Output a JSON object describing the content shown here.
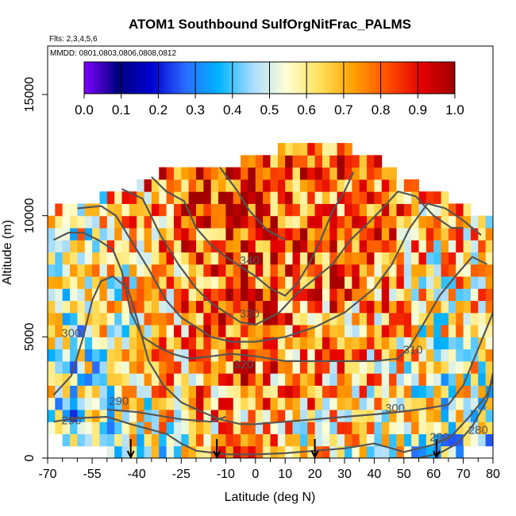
{
  "chart_data": {
    "type": "heatmap",
    "title": "ATOM1 Southbound SulfOrgNitFrac_PALMS",
    "subtitle_flights": "Flts: 2,3,4,5,6",
    "subtitle_dates": "MMDD: 0801,0803,0806,0808,0812",
    "xlabel": "Latitude (deg N)",
    "ylabel": "Altitude (m)",
    "xlim": [
      -70,
      80
    ],
    "ylim": [
      0,
      17000
    ],
    "x_ticks": [
      -70,
      -55,
      -40,
      -25,
      -10,
      0,
      10,
      20,
      30,
      40,
      50,
      60,
      70,
      80
    ],
    "x_minor_ticks": [
      -65,
      -60,
      -50,
      -45,
      -35,
      -30,
      -20,
      -15,
      -5,
      5,
      15,
      25,
      35,
      45,
      55,
      65,
      75
    ],
    "y_ticks": [
      0,
      5000,
      10000,
      15000
    ],
    "colorbar": {
      "min": 0.0,
      "max": 1.0,
      "ticks": [
        "0.0",
        "0.1",
        "0.2",
        "0.3",
        "0.4",
        "0.5",
        "0.6",
        "0.7",
        "0.8",
        "0.9",
        "1.0"
      ],
      "stops": [
        "#7f00ff",
        "#00007f",
        "#0000d0",
        "#2a6cff",
        "#00b4ff",
        "#a8dcff",
        "#ffffd6",
        "#ffe05a",
        "#ffa000",
        "#ff5000",
        "#e60000",
        "#a00000"
      ]
    },
    "value_grid": {
      "x_start": -70,
      "x_step": 2.5,
      "y_start": 0,
      "y_step": 500,
      "lat_profile": [
        [
          -70,
          0.38
        ],
        [
          -60,
          0.34
        ],
        [
          -50,
          0.44
        ],
        [
          -40,
          0.55
        ],
        [
          -30,
          0.65
        ],
        [
          -20,
          0.78
        ],
        [
          -10,
          0.85
        ],
        [
          0,
          0.82
        ],
        [
          10,
          0.78
        ],
        [
          20,
          0.74
        ],
        [
          30,
          0.7
        ],
        [
          40,
          0.68
        ],
        [
          50,
          0.58
        ],
        [
          60,
          0.48
        ],
        [
          70,
          0.48
        ],
        [
          80,
          0.5
        ]
      ],
      "alt_profile": [
        [
          0,
          0.48
        ],
        [
          1000,
          0.55
        ],
        [
          2000,
          0.62
        ],
        [
          3500,
          0.68
        ],
        [
          5000,
          0.72
        ],
        [
          7000,
          0.8
        ],
        [
          9000,
          0.86
        ],
        [
          11000,
          0.9
        ],
        [
          13500,
          0.88
        ]
      ],
      "data_coverage": [
        [
          -69.5,
          800,
          10200
        ],
        [
          -60,
          300,
          10500
        ],
        [
          -50,
          0,
          10800
        ],
        [
          -40,
          0,
          11200
        ],
        [
          -30,
          0,
          12000
        ],
        [
          -20,
          0,
          12000
        ],
        [
          -10,
          0,
          12000
        ],
        [
          0,
          0,
          12400
        ],
        [
          10,
          0,
          12800
        ],
        [
          20,
          0,
          13300
        ],
        [
          30,
          0,
          12800
        ],
        [
          40,
          0,
          12400
        ],
        [
          50,
          0,
          11600
        ],
        [
          60,
          0,
          11000
        ],
        [
          70,
          0,
          10400
        ],
        [
          78,
          500,
          10000
        ]
      ]
    },
    "potential_temperature_contours": [
      {
        "label": "280",
        "points": [
          [
            45,
            0
          ],
          [
            55,
            0
          ],
          [
            62,
            200
          ],
          [
            68,
            600
          ],
          [
            73,
            1300
          ],
          [
            78,
            2400
          ],
          [
            80,
            3500
          ]
        ]
      },
      {
        "label": "290",
        "points": [
          [
            -68,
            1500
          ],
          [
            -60,
            1650
          ],
          [
            -50,
            1700
          ],
          [
            -42,
            1400
          ],
          [
            -36,
            1200
          ],
          [
            -30,
            1000
          ],
          [
            -25,
            600
          ],
          [
            -20,
            300
          ],
          [
            -10,
            150
          ],
          [
            0,
            150
          ],
          [
            10,
            200
          ],
          [
            20,
            300
          ],
          [
            30,
            400
          ],
          [
            40,
            600
          ],
          [
            46,
            400
          ],
          [
            50,
            250
          ],
          [
            55,
            400
          ],
          [
            60,
            550
          ],
          [
            66,
            900
          ],
          [
            72,
            1700
          ],
          [
            78,
            2600
          ],
          [
            80,
            3200
          ]
        ]
      },
      {
        "label": "290",
        "points": [
          [
            -50,
            2000
          ],
          [
            -40,
            1900
          ],
          [
            -25,
            1600
          ],
          [
            -15,
            1500
          ],
          [
            -10,
            1700
          ]
        ]
      },
      {
        "label": "300",
        "points": [
          [
            -68,
            2600
          ],
          [
            -62,
            3400
          ],
          [
            -58,
            5000
          ],
          [
            -55,
            6500
          ],
          [
            -52,
            7300
          ],
          [
            -48,
            7500
          ],
          [
            -43,
            7000
          ],
          [
            -40,
            5800
          ],
          [
            -36,
            4000
          ],
          [
            -31,
            3000
          ],
          [
            -25,
            2300
          ],
          [
            -18,
            1900
          ],
          [
            -12,
            1600
          ],
          [
            -5,
            1400
          ],
          [
            0,
            1400
          ],
          [
            10,
            1500
          ],
          [
            20,
            1600
          ],
          [
            30,
            1700
          ],
          [
            40,
            1800
          ],
          [
            48,
            1900
          ],
          [
            55,
            2000
          ],
          [
            60,
            2100
          ],
          [
            65,
            2200
          ],
          [
            70,
            3000
          ],
          [
            75,
            4500
          ],
          [
            80,
            6000
          ]
        ]
      },
      {
        "label": "310",
        "points": [
          [
            -68,
            9000
          ],
          [
            -63,
            9300
          ],
          [
            -58,
            9300
          ],
          [
            -53,
            9000
          ],
          [
            -48,
            8600
          ],
          [
            -45,
            7700
          ],
          [
            -42,
            6000
          ],
          [
            -38,
            5000
          ],
          [
            -33,
            4600
          ],
          [
            -28,
            4300
          ],
          [
            -22,
            4100
          ],
          [
            -15,
            4200
          ],
          [
            -8,
            4300
          ],
          [
            0,
            4200
          ],
          [
            10,
            4000
          ],
          [
            20,
            4000
          ],
          [
            30,
            4000
          ],
          [
            40,
            4000
          ],
          [
            48,
            4100
          ],
          [
            52,
            4600
          ],
          [
            56,
            5400
          ],
          [
            62,
            6700
          ],
          [
            68,
            7600
          ],
          [
            73,
            8300
          ],
          [
            78,
            8000
          ]
        ]
      },
      {
        "label": "320",
        "points": [
          [
            -60,
            10300
          ],
          [
            -52,
            10400
          ],
          [
            -47,
            10000
          ],
          [
            -42,
            9000
          ],
          [
            -36,
            7800
          ],
          [
            -30,
            6500
          ],
          [
            -25,
            5800
          ],
          [
            -20,
            5400
          ],
          [
            -15,
            5000
          ],
          [
            -8,
            4800
          ],
          [
            0,
            4800
          ],
          [
            10,
            5000
          ],
          [
            20,
            5400
          ],
          [
            30,
            6000
          ],
          [
            40,
            7000
          ],
          [
            46,
            8000
          ],
          [
            52,
            9500
          ],
          [
            58,
            10500
          ],
          [
            64,
            10300
          ],
          [
            70,
            9800
          ],
          [
            76,
            9200
          ]
        ]
      },
      {
        "label": "330",
        "points": [
          [
            -45,
            11100
          ],
          [
            -38,
            10700
          ],
          [
            -32,
            9200
          ],
          [
            -26,
            8000
          ],
          [
            -20,
            7000
          ],
          [
            -15,
            6400
          ],
          [
            -10,
            6000
          ],
          [
            -5,
            5600
          ],
          [
            0,
            5500
          ],
          [
            8,
            6000
          ],
          [
            14,
            6800
          ],
          [
            20,
            7400
          ],
          [
            26,
            8000
          ],
          [
            32,
            9000
          ],
          [
            38,
            9700
          ],
          [
            42,
            10200
          ],
          [
            48,
            11000
          ],
          [
            54,
            10800
          ],
          [
            60,
            10000
          ],
          [
            66,
            9500
          ],
          [
            70,
            9500
          ]
        ]
      },
      {
        "label": "340",
        "points": [
          [
            -35,
            11600
          ],
          [
            -30,
            11000
          ],
          [
            -24,
            10600
          ],
          [
            -20,
            9500
          ],
          [
            -15,
            8800
          ],
          [
            -10,
            8300
          ],
          [
            -5,
            7900
          ],
          [
            0,
            7500
          ],
          [
            5,
            7000
          ],
          [
            10,
            6700
          ],
          [
            14,
            7200
          ],
          [
            18,
            8000
          ],
          [
            22,
            9000
          ],
          [
            26,
            10200
          ],
          [
            30,
            11000
          ],
          [
            33,
            11800
          ]
        ]
      },
      {
        "label": "",
        "points": [
          [
            -12,
            12000
          ],
          [
            -6,
            11000
          ],
          [
            -2,
            10200
          ],
          [
            4,
            9400
          ],
          [
            10,
            9000
          ]
        ]
      }
    ],
    "contour_labels": [
      {
        "text": "340",
        "x": -2,
        "y": 8000
      },
      {
        "text": "330",
        "x": -2,
        "y": 5800
      },
      {
        "text": "320",
        "x": -4,
        "y": 3700
      },
      {
        "text": "310",
        "x": 53,
        "y": 4300
      },
      {
        "text": "300",
        "x": 47,
        "y": 1900
      },
      {
        "text": "300",
        "x": -62,
        "y": 5000
      },
      {
        "text": "290",
        "x": -46,
        "y": 2200
      },
      {
        "text": "290",
        "x": 62,
        "y": 700
      },
      {
        "text": "280",
        "x": 75,
        "y": 1000
      },
      {
        "text": "290",
        "x": -62,
        "y": 1400
      }
    ],
    "tropopause_markers": [
      -42,
      -13,
      20,
      61
    ],
    "colors": {
      "contour": "#555555",
      "arrow": "#000000"
    }
  }
}
